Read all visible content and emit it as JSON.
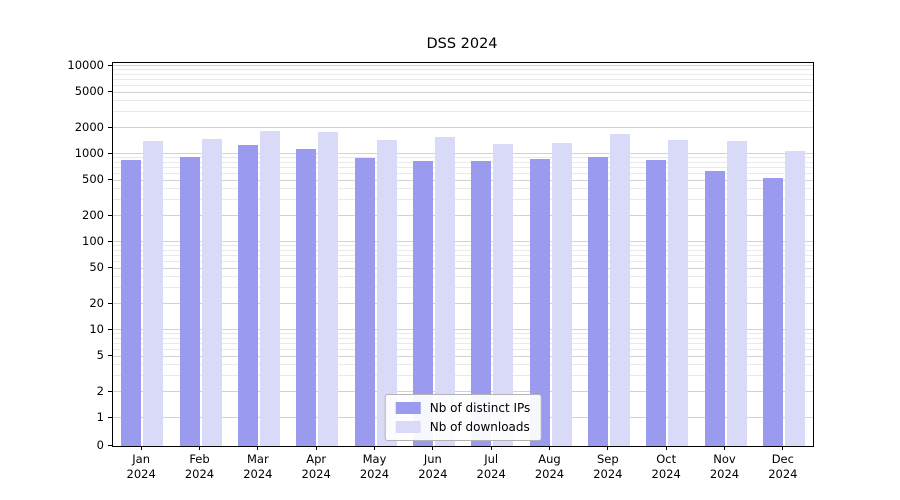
{
  "chart_data": {
    "type": "bar",
    "title": "DSS 2024",
    "yscale": "symlog",
    "grid": true,
    "legend_position": "lower center",
    "ylim": [
      0,
      10800
    ],
    "yticks": [
      0,
      1,
      2,
      5,
      10,
      20,
      50,
      100,
      200,
      500,
      1000,
      2000,
      5000,
      10000
    ],
    "categories": [
      "Jan",
      "Feb",
      "Mar",
      "Apr",
      "May",
      "Jun",
      "Jul",
      "Aug",
      "Sep",
      "Oct",
      "Nov",
      "Dec"
    ],
    "year": "2024",
    "xlabel": "",
    "ylabel": "",
    "series": [
      {
        "name": "Nb of distinct IPs",
        "color": "#9a9aee",
        "values": [
          860,
          920,
          1250,
          1150,
          890,
          830,
          830,
          870,
          930,
          850,
          640,
          530
        ]
      },
      {
        "name": "Nb of downloads",
        "color": "#d9d9f8",
        "values": [
          1400,
          1500,
          1850,
          1800,
          1450,
          1550,
          1300,
          1350,
          1700,
          1450,
          1400,
          1080
        ]
      }
    ]
  }
}
